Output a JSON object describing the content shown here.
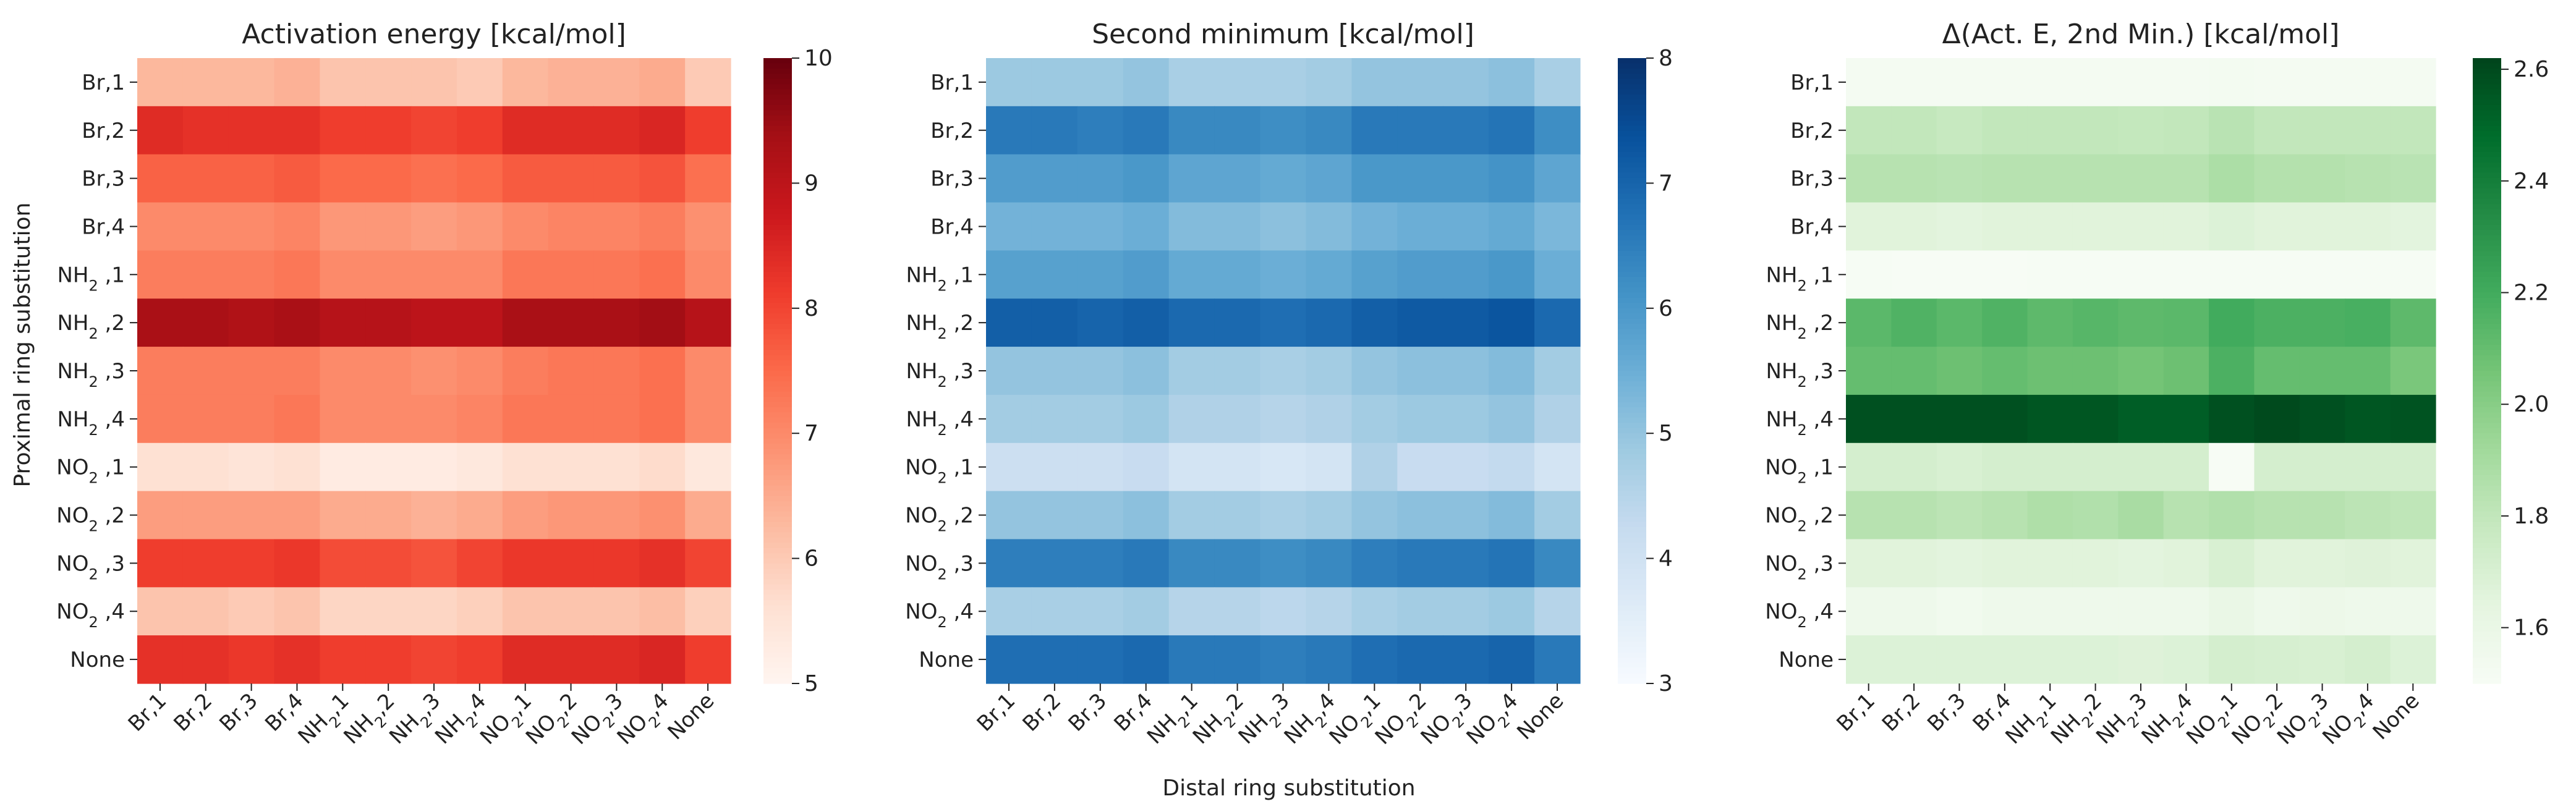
{
  "figure": {
    "ylabel": "Proximal ring substitution",
    "xlabel": "Distal ring substitution"
  },
  "row_labels": [
    {
      "base": "Br",
      "sub": "",
      "suffix": ",1"
    },
    {
      "base": "Br",
      "sub": "",
      "suffix": ",2"
    },
    {
      "base": "Br",
      "sub": "",
      "suffix": ",3"
    },
    {
      "base": "Br",
      "sub": "",
      "suffix": ",4"
    },
    {
      "base": "NH",
      "sub": "2",
      "suffix": " ,1"
    },
    {
      "base": "NH",
      "sub": "2",
      "suffix": " ,2"
    },
    {
      "base": "NH",
      "sub": "2",
      "suffix": " ,3"
    },
    {
      "base": "NH",
      "sub": "2",
      "suffix": " ,4"
    },
    {
      "base": "NO",
      "sub": "2",
      "suffix": " ,1"
    },
    {
      "base": "NO",
      "sub": "2",
      "suffix": " ,2"
    },
    {
      "base": "NO",
      "sub": "2",
      "suffix": " ,3"
    },
    {
      "base": "NO",
      "sub": "2",
      "suffix": " ,4"
    },
    {
      "base": "None",
      "sub": "",
      "suffix": ""
    }
  ],
  "col_labels": [
    {
      "base": "Br",
      "sub": "",
      "suffix": ",1"
    },
    {
      "base": "Br",
      "sub": "",
      "suffix": ",2"
    },
    {
      "base": "Br",
      "sub": "",
      "suffix": ",3"
    },
    {
      "base": "Br",
      "sub": "",
      "suffix": ",4"
    },
    {
      "base": "NH",
      "sub": "2",
      "suffix": ",1"
    },
    {
      "base": "NH",
      "sub": "2",
      "suffix": ",2"
    },
    {
      "base": "NH",
      "sub": "2",
      "suffix": ",3"
    },
    {
      "base": "NH",
      "sub": "2",
      "suffix": ",4"
    },
    {
      "base": "NO",
      "sub": "2",
      "suffix": ",1"
    },
    {
      "base": "NO",
      "sub": "2",
      "suffix": ",2"
    },
    {
      "base": "NO",
      "sub": "2",
      "suffix": ",3"
    },
    {
      "base": "NO",
      "sub": "2",
      "suffix": ",4"
    },
    {
      "base": "None",
      "sub": "",
      "suffix": ""
    }
  ],
  "chart_data": [
    {
      "type": "heatmap",
      "title": "Activation energy [kcal/mol]",
      "colormap": "Reds",
      "vmin": 5,
      "vmax": 10,
      "colorbar_ticks": [
        5,
        6,
        7,
        8,
        9,
        10
      ],
      "values": [
        [
          6.3,
          6.3,
          6.3,
          6.4,
          6.1,
          6.1,
          6.1,
          6.0,
          6.3,
          6.4,
          6.4,
          6.5,
          6.0
        ],
        [
          8.4,
          8.3,
          8.3,
          8.3,
          8.1,
          8.1,
          8.0,
          8.1,
          8.4,
          8.4,
          8.4,
          8.5,
          8.1
        ],
        [
          7.6,
          7.6,
          7.6,
          7.7,
          7.5,
          7.5,
          7.4,
          7.5,
          7.7,
          7.7,
          7.7,
          7.8,
          7.4
        ],
        [
          7.0,
          7.0,
          7.0,
          7.1,
          6.8,
          6.8,
          6.7,
          6.8,
          7.0,
          7.1,
          7.1,
          7.2,
          6.9
        ],
        [
          7.2,
          7.2,
          7.2,
          7.3,
          7.0,
          7.0,
          7.0,
          7.0,
          7.3,
          7.3,
          7.3,
          7.4,
          7.0
        ],
        [
          9.3,
          9.3,
          9.2,
          9.3,
          9.1,
          9.1,
          9.0,
          9.0,
          9.3,
          9.3,
          9.3,
          9.4,
          9.1
        ],
        [
          7.2,
          7.2,
          7.2,
          7.2,
          7.0,
          7.0,
          6.9,
          7.0,
          7.2,
          7.3,
          7.3,
          7.4,
          7.0
        ],
        [
          7.2,
          7.2,
          7.2,
          7.3,
          7.0,
          7.0,
          7.0,
          7.1,
          7.3,
          7.3,
          7.3,
          7.4,
          7.0
        ],
        [
          5.6,
          5.6,
          5.5,
          5.6,
          5.3,
          5.3,
          5.3,
          5.4,
          5.6,
          5.6,
          5.6,
          5.7,
          5.4
        ],
        [
          6.7,
          6.7,
          6.7,
          6.7,
          6.5,
          6.5,
          6.4,
          6.5,
          6.7,
          6.8,
          6.8,
          6.9,
          6.5
        ],
        [
          8.1,
          8.1,
          8.1,
          8.2,
          7.9,
          7.9,
          7.8,
          8.0,
          8.2,
          8.2,
          8.2,
          8.3,
          8.0
        ],
        [
          6.1,
          6.1,
          6.0,
          6.1,
          5.8,
          5.8,
          5.8,
          5.9,
          6.1,
          6.1,
          6.1,
          6.2,
          5.9
        ],
        [
          8.3,
          8.3,
          8.2,
          8.3,
          8.1,
          8.1,
          8.0,
          8.1,
          8.4,
          8.4,
          8.4,
          8.5,
          8.1
        ]
      ]
    },
    {
      "type": "heatmap",
      "title": "Second minimum [kcal/mol]",
      "colormap": "Blues",
      "vmin": 3,
      "vmax": 8,
      "colorbar_ticks": [
        3,
        4,
        5,
        6,
        7,
        8
      ],
      "values": [
        [
          4.9,
          4.9,
          4.9,
          5.0,
          4.7,
          4.7,
          4.7,
          4.8,
          5.0,
          5.0,
          5.0,
          5.1,
          4.7
        ],
        [
          6.6,
          6.6,
          6.5,
          6.6,
          6.3,
          6.3,
          6.2,
          6.3,
          6.6,
          6.6,
          6.6,
          6.7,
          6.2
        ],
        [
          5.9,
          5.9,
          5.9,
          6.0,
          5.7,
          5.7,
          5.6,
          5.7,
          6.0,
          6.0,
          6.0,
          6.1,
          5.7
        ],
        [
          5.4,
          5.4,
          5.4,
          5.5,
          5.2,
          5.2,
          5.1,
          5.2,
          5.4,
          5.5,
          5.5,
          5.6,
          5.3
        ],
        [
          5.8,
          5.8,
          5.8,
          5.9,
          5.6,
          5.6,
          5.5,
          5.6,
          5.8,
          5.9,
          5.9,
          6.0,
          5.5
        ],
        [
          7.1,
          7.1,
          7.0,
          7.1,
          6.9,
          6.9,
          6.8,
          6.9,
          7.1,
          7.2,
          7.2,
          7.3,
          6.9
        ],
        [
          5.0,
          5.0,
          5.0,
          5.1,
          4.8,
          4.8,
          4.7,
          4.8,
          5.0,
          5.1,
          5.1,
          5.2,
          4.8
        ],
        [
          4.8,
          4.8,
          4.8,
          4.9,
          4.6,
          4.6,
          4.5,
          4.6,
          4.8,
          4.9,
          4.9,
          5.0,
          4.6
        ],
        [
          4.1,
          4.1,
          4.1,
          4.2,
          3.9,
          3.9,
          3.8,
          3.9,
          4.6,
          4.2,
          4.2,
          4.3,
          3.9
        ],
        [
          5.0,
          5.0,
          5.0,
          5.1,
          4.8,
          4.8,
          4.7,
          4.8,
          5.0,
          5.1,
          5.1,
          5.2,
          4.8
        ],
        [
          6.5,
          6.5,
          6.5,
          6.6,
          6.3,
          6.3,
          6.2,
          6.3,
          6.5,
          6.6,
          6.6,
          6.7,
          6.3
        ],
        [
          4.7,
          4.7,
          4.7,
          4.8,
          4.5,
          4.5,
          4.4,
          4.5,
          4.7,
          4.8,
          4.8,
          4.9,
          4.5
        ],
        [
          6.8,
          6.8,
          6.8,
          6.9,
          6.6,
          6.6,
          6.5,
          6.6,
          6.8,
          6.9,
          6.9,
          7.0,
          6.6
        ]
      ]
    },
    {
      "type": "heatmap",
      "title": "Δ(Act. E, 2nd Min.) [kcal/mol]",
      "colormap": "Greens",
      "vmin": 1.5,
      "vmax": 2.62,
      "colorbar_ticks": [
        1.6,
        1.8,
        2.0,
        2.2,
        2.4,
        2.6
      ],
      "values": [
        [
          1.52,
          1.52,
          1.52,
          1.52,
          1.52,
          1.52,
          1.52,
          1.52,
          1.53,
          1.52,
          1.52,
          1.52,
          1.52
        ],
        [
          1.8,
          1.8,
          1.78,
          1.8,
          1.8,
          1.8,
          1.79,
          1.8,
          1.83,
          1.8,
          1.8,
          1.8,
          1.8
        ],
        [
          1.84,
          1.84,
          1.83,
          1.84,
          1.84,
          1.84,
          1.84,
          1.84,
          1.88,
          1.85,
          1.85,
          1.84,
          1.83
        ],
        [
          1.66,
          1.66,
          1.65,
          1.66,
          1.66,
          1.66,
          1.66,
          1.66,
          1.68,
          1.66,
          1.66,
          1.66,
          1.65
        ],
        [
          1.51,
          1.5,
          1.5,
          1.5,
          1.51,
          1.51,
          1.51,
          1.51,
          1.51,
          1.51,
          1.51,
          1.51,
          1.51
        ],
        [
          2.13,
          2.16,
          2.13,
          2.16,
          2.12,
          2.14,
          2.12,
          2.13,
          2.2,
          2.17,
          2.17,
          2.18,
          2.12
        ],
        [
          2.1,
          2.1,
          2.08,
          2.1,
          2.08,
          2.08,
          2.06,
          2.08,
          2.17,
          2.1,
          2.1,
          2.1,
          2.04
        ],
        [
          2.58,
          2.58,
          2.58,
          2.58,
          2.56,
          2.56,
          2.53,
          2.53,
          2.58,
          2.6,
          2.58,
          2.56,
          2.57
        ],
        [
          1.72,
          1.72,
          1.7,
          1.72,
          1.72,
          1.72,
          1.72,
          1.72,
          1.5,
          1.72,
          1.72,
          1.72,
          1.72
        ],
        [
          1.84,
          1.84,
          1.82,
          1.84,
          1.87,
          1.86,
          1.89,
          1.84,
          1.86,
          1.84,
          1.84,
          1.82,
          1.81
        ],
        [
          1.66,
          1.66,
          1.65,
          1.66,
          1.66,
          1.66,
          1.65,
          1.66,
          1.7,
          1.66,
          1.66,
          1.67,
          1.66
        ],
        [
          1.57,
          1.57,
          1.55,
          1.57,
          1.57,
          1.57,
          1.57,
          1.57,
          1.6,
          1.57,
          1.58,
          1.57,
          1.57
        ],
        [
          1.68,
          1.68,
          1.68,
          1.68,
          1.68,
          1.68,
          1.67,
          1.68,
          1.72,
          1.71,
          1.7,
          1.72,
          1.68
        ]
      ]
    }
  ]
}
